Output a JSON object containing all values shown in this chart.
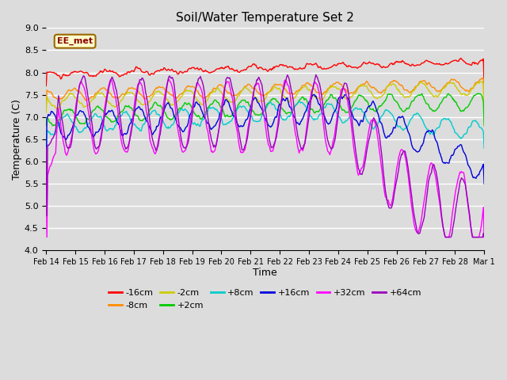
{
  "title": "Soil/Water Temperature Set 2",
  "xlabel": "Time",
  "ylabel": "Temperature (C)",
  "ylim": [
    4.0,
    9.0
  ],
  "yticks": [
    4.0,
    4.5,
    5.0,
    5.5,
    6.0,
    6.5,
    7.0,
    7.5,
    8.0,
    8.5,
    9.0
  ],
  "bg_color": "#dcdcdc",
  "plot_bg": "#dcdcdc",
  "grid_color": "white",
  "annotation_text": "EE_met",
  "annotation_color": "#8b0000",
  "annotation_bg": "#ffffcc",
  "series_order": [
    "-16cm",
    "-8cm",
    "-2cm",
    "+2cm",
    "+8cm",
    "+16cm",
    "+32cm",
    "+64cm"
  ],
  "colors": {
    "-16cm": "#ff0000",
    "-8cm": "#ff8c00",
    "-2cm": "#cccc00",
    "+2cm": "#00cc00",
    "+8cm": "#00cccc",
    "+16cm": "#0000dd",
    "+32cm": "#ff00ff",
    "+64cm": "#9900bb"
  },
  "lw": 1.0,
  "xtick_labels": [
    "Feb 14",
    "Feb 15",
    "Feb 16",
    "Feb 17",
    "Feb 18",
    "Feb 19",
    "Feb 20",
    "Feb 21",
    "Feb 22",
    "Feb 23",
    "Feb 24",
    "Feb 25",
    "Feb 26",
    "Feb 27",
    "Feb 28",
    "Mar 1"
  ],
  "legend_labels": [
    "-16cm",
    "-8cm",
    "-2cm",
    "+2cm",
    "+8cm",
    "+16cm",
    "+32cm",
    "+64cm"
  ],
  "n_points": 600,
  "figsize": [
    6.4,
    4.8
  ],
  "dpi": 100
}
